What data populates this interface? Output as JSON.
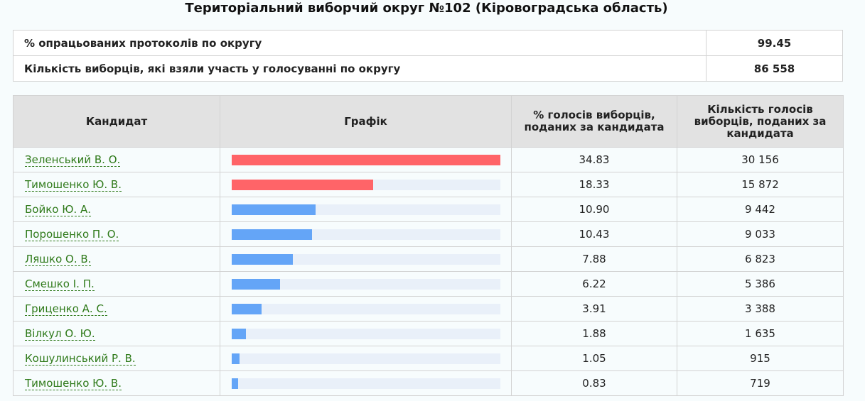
{
  "title": "Територіальний виборчий округ №102 (Кіровоградська область)",
  "summary": {
    "processed_label": "% опрацьованих протоколів по округу",
    "processed_value": "99.45",
    "turnout_label": "Кількість виборців, які взяли участь у голосуванні по округу",
    "turnout_value": "86 558"
  },
  "table": {
    "headers": {
      "candidate": "Кандидат",
      "chart": "Графік",
      "percent": "% голосів виборців, поданих за кандидата",
      "votes": "Кількість голосів виборців, поданих за кандидата"
    },
    "bar_colors": {
      "top": "#ff6468",
      "other": "#64a5f7",
      "track": "#e9f0f9"
    },
    "rows": [
      {
        "name": "Зеленський В. О.",
        "percent": "34.83",
        "votes": "30 156",
        "share": 34.83,
        "color": "#ff6468"
      },
      {
        "name": "Тимошенко Ю. В.",
        "percent": "18.33",
        "votes": "15 872",
        "share": 18.33,
        "color": "#ff6468"
      },
      {
        "name": "Бойко Ю. А.",
        "percent": "10.90",
        "votes": "9 442",
        "share": 10.9,
        "color": "#64a5f7"
      },
      {
        "name": "Порошенко П. О.",
        "percent": "10.43",
        "votes": "9 033",
        "share": 10.43,
        "color": "#64a5f7"
      },
      {
        "name": "Ляшко О. В.",
        "percent": "7.88",
        "votes": "6 823",
        "share": 7.88,
        "color": "#64a5f7"
      },
      {
        "name": "Смешко І. П.",
        "percent": "6.22",
        "votes": "5 386",
        "share": 6.22,
        "color": "#64a5f7"
      },
      {
        "name": "Гриценко А. С.",
        "percent": "3.91",
        "votes": "3 388",
        "share": 3.91,
        "color": "#64a5f7"
      },
      {
        "name": "Вілкул О. Ю.",
        "percent": "1.88",
        "votes": "1 635",
        "share": 1.88,
        "color": "#64a5f7"
      },
      {
        "name": "Кошулинський Р. В.",
        "percent": "1.05",
        "votes": "915",
        "share": 1.05,
        "color": "#64a5f7"
      },
      {
        "name": "Тимошенко Ю. В.",
        "percent": "0.83",
        "votes": "719",
        "share": 0.83,
        "color": "#64a5f7"
      }
    ]
  }
}
